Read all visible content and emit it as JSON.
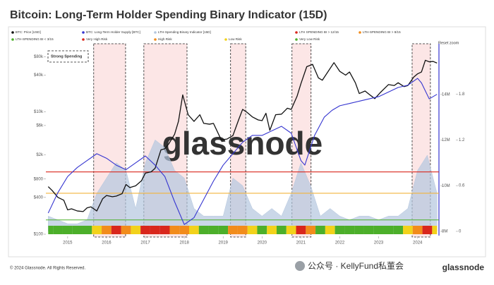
{
  "chart_data": {
    "type": "line",
    "title": "Bitcoin: Long-Term Holder Spending Binary Indicator (15D)",
    "reset_zoom": "Reset zoom",
    "watermark": "glassnode",
    "shaded_label": "Strong Spending",
    "xlim": [
      2014.44,
      2024.55
    ],
    "xticks": [
      2015,
      2016,
      2017,
      2018,
      2019,
      2020,
      2021,
      2022,
      2023,
      2024
    ],
    "ylog": true,
    "ylim": [
      100,
      100000
    ],
    "yticks": [
      {
        "value": 100,
        "label": "$100"
      },
      {
        "value": 400,
        "label": "$400"
      },
      {
        "value": 800,
        "label": "$800"
      },
      {
        "value": 2000,
        "label": "$2k"
      },
      {
        "value": 6000,
        "label": "$6k"
      },
      {
        "value": 10000,
        "label": "$10k"
      },
      {
        "value": 40000,
        "label": "$40k"
      },
      {
        "value": 80000,
        "label": "$80k"
      }
    ],
    "y2lim": [
      7875000,
      15906250
    ],
    "y2ticks": [
      {
        "value": 8000000,
        "label": "8M"
      },
      {
        "value": 10000000,
        "label": "10M"
      },
      {
        "value": 12000000,
        "label": "12M"
      },
      {
        "value": 14000000,
        "label": "14M"
      }
    ],
    "y3lim": [
      -0.0375,
      2.37
    ],
    "y3ticks": [
      0,
      0.6,
      1.2,
      1.8
    ],
    "series": [
      {
        "name": "BTC: Price [USD]",
        "color": "#111111",
        "x": [
          2014.5,
          2014.6,
          2014.75,
          2014.9,
          2015.0,
          2015.1,
          2015.25,
          2015.4,
          2015.5,
          2015.6,
          2015.75,
          2015.9,
          2016.0,
          2016.15,
          2016.25,
          2016.4,
          2016.5,
          2016.6,
          2016.75,
          2016.9,
          2017.0,
          2017.15,
          2017.25,
          2017.4,
          2017.5,
          2017.6,
          2017.75,
          2017.85,
          2017.96,
          2018.1,
          2018.25,
          2018.4,
          2018.5,
          2018.65,
          2018.75,
          2018.95,
          2019.1,
          2019.25,
          2019.4,
          2019.5,
          2019.6,
          2019.75,
          2019.9,
          2020.0,
          2020.1,
          2020.2,
          2020.35,
          2020.5,
          2020.65,
          2020.75,
          2020.9,
          2021.0,
          2021.15,
          2021.3,
          2021.45,
          2021.55,
          2021.7,
          2021.85,
          2022.0,
          2022.15,
          2022.25,
          2022.4,
          2022.5,
          2022.65,
          2022.75,
          2022.9,
          2023.05,
          2023.25,
          2023.4,
          2023.5,
          2023.65,
          2023.75,
          2023.9,
          2024.0,
          2024.1,
          2024.2,
          2024.3,
          2024.4,
          2024.5
        ],
        "values": [
          600,
          520,
          400,
          360,
          250,
          260,
          240,
          235,
          270,
          280,
          240,
          380,
          430,
          410,
          420,
          460,
          650,
          580,
          620,
          750,
          1000,
          1050,
          1200,
          2400,
          2500,
          3000,
          4300,
          7000,
          19000,
          9000,
          7000,
          9000,
          6500,
          6300,
          6500,
          3500,
          3600,
          4100,
          7500,
          11000,
          10000,
          8300,
          7400,
          7200,
          9500,
          5000,
          9000,
          9200,
          11500,
          11000,
          18000,
          29000,
          55000,
          60000,
          36000,
          33000,
          46000,
          64000,
          46000,
          40000,
          45000,
          30000,
          20000,
          22000,
          19500,
          16500,
          21000,
          28000,
          27000,
          30000,
          26000,
          27000,
          37000,
          42000,
          45000,
          70000,
          66000,
          67000,
          63000
        ]
      },
      {
        "name": "BTC: Long-Term Holder Supply [BTC]",
        "color": "#3535d0",
        "axis": "y2",
        "x": [
          2014.5,
          2014.75,
          2015.0,
          2015.25,
          2015.5,
          2015.75,
          2016.0,
          2016.25,
          2016.5,
          2016.75,
          2017.0,
          2017.25,
          2017.5,
          2017.75,
          2018.0,
          2018.25,
          2018.5,
          2018.75,
          2019.0,
          2019.25,
          2019.5,
          2019.75,
          2020.0,
          2020.25,
          2020.5,
          2020.75,
          2021.0,
          2021.1,
          2021.35,
          2021.6,
          2021.8,
          2022.0,
          2022.25,
          2022.5,
          2022.75,
          2023.0,
          2023.25,
          2023.5,
          2023.75,
          2024.0,
          2024.1,
          2024.3,
          2024.5
        ],
        "values": [
          8800000,
          9700000,
          10400000,
          10800000,
          11100000,
          11400000,
          11200000,
          10900000,
          10700000,
          11000000,
          11300000,
          10900000,
          10400000,
          9300000,
          8300000,
          8600000,
          9400000,
          10200000,
          10900000,
          11400000,
          11900000,
          12200000,
          12200000,
          12400000,
          12600000,
          12300000,
          11100000,
          10900000,
          12200000,
          13000000,
          13300000,
          13500000,
          13600000,
          13700000,
          13800000,
          13900000,
          14100000,
          14300000,
          14400000,
          14700000,
          14500000,
          13800000,
          14000000
        ]
      },
      {
        "name": "LTH-Spending Binary Indicator [15D]",
        "color": "#b4c6de",
        "axis": "y3",
        "x": [
          2014.5,
          2014.75,
          2015.0,
          2015.25,
          2015.5,
          2015.75,
          2016.0,
          2016.25,
          2016.5,
          2016.75,
          2017.0,
          2017.25,
          2017.5,
          2017.75,
          2018.0,
          2018.25,
          2018.5,
          2018.75,
          2019.0,
          2019.25,
          2019.5,
          2019.75,
          2020.0,
          2020.25,
          2020.5,
          2020.75,
          2021.0,
          2021.25,
          2021.5,
          2021.75,
          2022.0,
          2022.25,
          2022.5,
          2022.75,
          2023.0,
          2023.25,
          2023.5,
          2023.75,
          2024.0,
          2024.25,
          2024.5
        ],
        "values": [
          0.2,
          0.15,
          0.1,
          0.1,
          0.15,
          0.5,
          0.7,
          0.9,
          0.8,
          0.3,
          0.9,
          1.2,
          1.1,
          0.8,
          0.7,
          0.3,
          0.2,
          0.2,
          0.2,
          0.7,
          0.6,
          0.3,
          0.2,
          0.3,
          0.2,
          0.5,
          0.9,
          0.6,
          0.2,
          0.3,
          0.2,
          0.15,
          0.2,
          0.2,
          0.15,
          0.2,
          0.2,
          0.3,
          0.8,
          1.0,
          0.5
        ],
        "strip_colors": [
          "#4caf2a",
          "#4caf2a",
          "#4caf2a",
          "#4caf2a",
          "#4caf2a",
          "#f2d21b",
          "#f28c1b",
          "#d9261c",
          "#f28c1b",
          "#f2d21b",
          "#d9261c",
          "#d9261c",
          "#d9261c",
          "#f28c1b",
          "#f28c1b",
          "#f2d21b",
          "#4caf2a",
          "#4caf2a",
          "#4caf2a",
          "#f28c1b",
          "#f28c1b",
          "#f2d21b",
          "#4caf2a",
          "#f2d21b",
          "#4caf2a",
          "#f2d21b",
          "#d9261c",
          "#f28c1b",
          "#4caf2a",
          "#f2d21b",
          "#4caf2a",
          "#4caf2a",
          "#4caf2a",
          "#4caf2a",
          "#4caf2a",
          "#4caf2a",
          "#4caf2a",
          "#f2d21b",
          "#f28c1b",
          "#d9261c",
          "#f2d21b"
        ]
      }
    ],
    "legend_items": [
      {
        "name": "LTH SPENDING BI > 12/15",
        "color": "#d9261c"
      },
      {
        "name": "LTH-SPENDING BI > 8/15",
        "color": "#f28c1b"
      },
      {
        "name": "LTH-SPENDING BI < 3/15",
        "color": "#4caf2a"
      },
      {
        "name": "Very High Risk",
        "color": "#d9261c"
      },
      {
        "name": "High Risk",
        "color": "#f28c1b"
      },
      {
        "name": "Low Risk",
        "color": "#f2d21b"
      },
      {
        "name": "Very Low Risk",
        "color": "#4caf2a"
      }
    ],
    "thresholds": [
      {
        "value": 0.78,
        "color": "#d9261c"
      },
      {
        "value": 0.5,
        "color": "#f2b33b"
      },
      {
        "value": 0.15,
        "color": "#4caf2a"
      }
    ],
    "shaded_periods": [
      {
        "start": 2015.67,
        "end": 2016.49
      },
      {
        "start": 2016.96,
        "end": 2018.07
      },
      {
        "start": 2019.19,
        "end": 2019.58
      },
      {
        "start": 2020.77,
        "end": 2021.26
      },
      {
        "start": 2023.86,
        "end": 2024.33
      }
    ]
  },
  "footer": {
    "copyright": "© 2024 Glassnode. All Rights Reserved.",
    "wechat": "公众号 · KellyFund私董会",
    "brand": "glassnode"
  }
}
